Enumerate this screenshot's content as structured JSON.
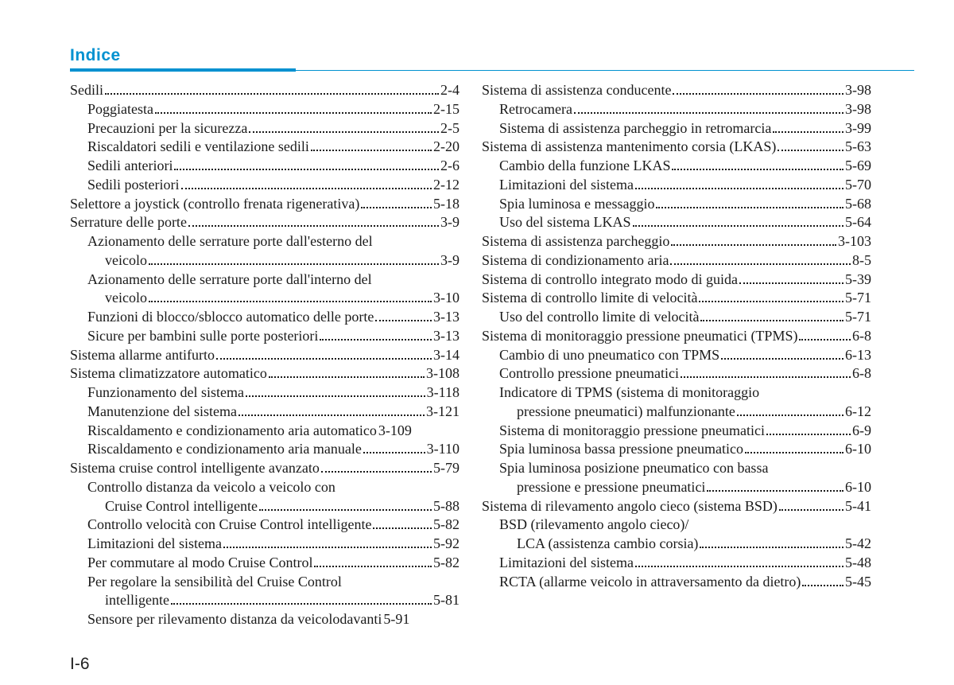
{
  "header": {
    "title": "Indice"
  },
  "footer": {
    "page": "I-6"
  },
  "colors": {
    "accent": "#0091d0",
    "text": "#1a1a1a",
    "bg": "#ffffff"
  },
  "left": [
    {
      "label": "Sedili",
      "page": "2-4",
      "level": 0
    },
    {
      "label": "Poggiatesta",
      "page": "2-15",
      "level": 1
    },
    {
      "label": "Precauzioni per la sicurezza",
      "page": "2-5",
      "level": 1
    },
    {
      "label": "Riscaldatori sedili e ventilazione sedili",
      "page": "2-20",
      "level": 1
    },
    {
      "label": "Sedili anteriori",
      "page": "2-6",
      "level": 1
    },
    {
      "label": "Sedili posteriori",
      "page": "2-12",
      "level": 1
    },
    {
      "label": "Selettore a joystick (controllo frenata rigenerativa)",
      "page": "5-18",
      "level": 0
    },
    {
      "label": "Serrature delle porte",
      "page": "3-9",
      "level": 0
    },
    {
      "label": "Azionamento delle serrature porte dall'esterno del",
      "cont": "veicolo",
      "page": "3-9",
      "level": 1
    },
    {
      "label": "Azionamento delle serrature porte dall'interno del",
      "cont": "veicolo",
      "page": "3-10",
      "level": 1
    },
    {
      "label": "Funzioni di blocco/sblocco automatico delle porte",
      "page": "3-13",
      "level": 1,
      "tight": true
    },
    {
      "label": "Sicure per bambini sulle porte posteriori",
      "page": "3-13",
      "level": 1
    },
    {
      "label": "Sistema allarme antifurto",
      "page": "3-14",
      "level": 0
    },
    {
      "label": "Sistema climatizzatore automatico",
      "page": "3-108",
      "level": 0
    },
    {
      "label": "Funzionamento del sistema",
      "page": "3-118",
      "level": 1
    },
    {
      "label": "Manutenzione del sistema",
      "page": "3-121",
      "level": 1
    },
    {
      "label": "Riscaldamento e condizionamento aria automatico",
      "page": "3-109",
      "level": 1,
      "nodots": true
    },
    {
      "label": "Riscaldamento e condizionamento aria manuale",
      "page": "3-110",
      "level": 1
    },
    {
      "label": "Sistema cruise control intelligente avanzato",
      "page": "5-79",
      "level": 0
    },
    {
      "label": "Controllo distanza da veicolo a veicolo con",
      "cont": "Cruise Control intelligente",
      "page": "5-88",
      "level": 1
    },
    {
      "label": "Controllo velocità con Cruise Control intelligente",
      "page": "5-82",
      "level": 1
    },
    {
      "label": "Limitazioni del sistema",
      "page": "5-92",
      "level": 1
    },
    {
      "label": "Per commutare al modo Cruise Control",
      "page": "5-82",
      "level": 1
    },
    {
      "label": "Per regolare la sensibilità del Cruise Control",
      "cont": "intelligente",
      "page": "5-81",
      "level": 1
    },
    {
      "label": "Sensore per rilevamento distanza da veicolodavanti",
      "page": "5-91",
      "level": 1,
      "nodots": true
    }
  ],
  "right": [
    {
      "label": "Sistema di assistenza conducente",
      "page": "3-98",
      "level": 0
    },
    {
      "label": "Retrocamera",
      "page": "3-98",
      "level": 1
    },
    {
      "label": "Sistema di assistenza parcheggio in retromarcia",
      "page": "3-99",
      "level": 1
    },
    {
      "label": "Sistema di assistenza mantenimento corsia (LKAS)",
      "page": "5-63",
      "level": 0,
      "tight": true
    },
    {
      "label": "Cambio della funzione LKAS",
      "page": "5-69",
      "level": 1
    },
    {
      "label": "Limitazioni del sistema",
      "page": "5-70",
      "level": 1
    },
    {
      "label": "Spia luminosa e messaggio",
      "page": "5-68",
      "level": 1
    },
    {
      "label": "Uso del sistema LKAS",
      "page": "5-64",
      "level": 1
    },
    {
      "label": "Sistema di assistenza parcheggio",
      "page": "3-103",
      "level": 0
    },
    {
      "label": "Sistema di condizionamento aria",
      "page": "8-5",
      "level": 0
    },
    {
      "label": "Sistema di controllo integrato modo di guida",
      "page": "5-39",
      "level": 0
    },
    {
      "label": "Sistema di controllo limite di velocità",
      "page": "5-71",
      "level": 0
    },
    {
      "label": "Uso del controllo limite di velocità",
      "page": "5-71",
      "level": 1
    },
    {
      "label": "Sistema di monitoraggio pressione pneumatici (TPMS)",
      "page": "6-8",
      "level": 0,
      "tight": true
    },
    {
      "label": "Cambio di uno pneumatico con TPMS",
      "page": "6-13",
      "level": 1
    },
    {
      "label": "Controllo pressione pneumatici",
      "page": "6-8",
      "level": 1
    },
    {
      "label": "Indicatore di TPMS (sistema di monitoraggio",
      "cont": "pressione pneumatici) malfunzionante",
      "page": "6-12",
      "level": 1
    },
    {
      "label": "Sistema di monitoraggio pressione pneumatici",
      "page": "6-9",
      "level": 1
    },
    {
      "label": "Spia luminosa bassa pressione pneumatico",
      "page": "6-10",
      "level": 1
    },
    {
      "label": "Spia luminosa posizione pneumatico con bassa",
      "cont": "pressione e pressione pneumatici",
      "page": "6-10",
      "level": 1
    },
    {
      "label": "Sistema di rilevamento angolo cieco (sistema BSD)",
      "page": "5-41",
      "level": 0
    },
    {
      "label": "BSD (rilevamento angolo cieco)/",
      "cont": "LCA (assistenza cambio corsia)",
      "page": "5-42",
      "level": 1
    },
    {
      "label": "Limitazioni del sistema",
      "page": "5-48",
      "level": 1
    },
    {
      "label": "RCTA (allarme veicolo in attraversamento da dietro)",
      "page": "5-45",
      "level": 1
    }
  ]
}
